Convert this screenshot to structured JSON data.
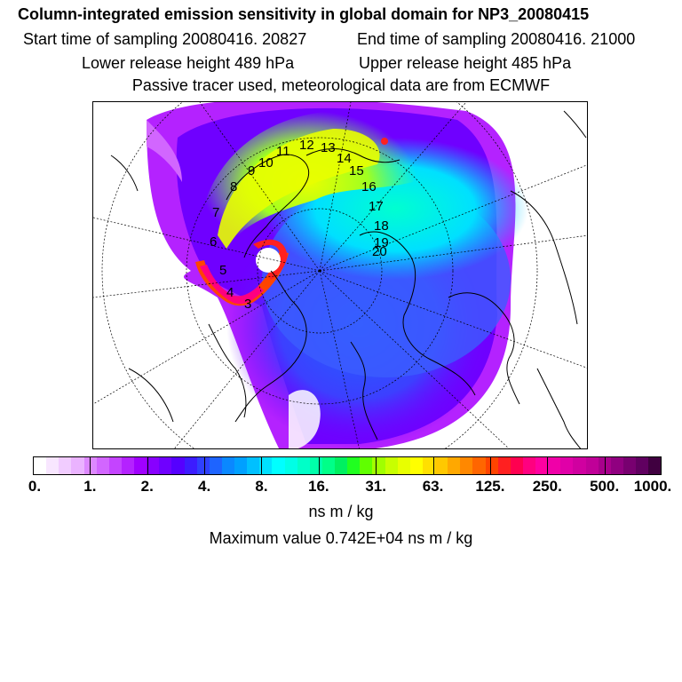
{
  "header": {
    "title": "Column-integrated emission sensitivity in global domain for NP3_20080415",
    "start_time": "Start time of sampling 20080416. 20827",
    "end_time": "End time of sampling 20080416. 21000",
    "lower_release": "Lower release height  489 hPa",
    "upper_release": "Upper release height  485 hPa",
    "tracer_info": "Passive tracer used, meteorological data are from ECMWF"
  },
  "map": {
    "trajectory_labels": [
      "3",
      "4",
      "5",
      "6",
      "7",
      "8",
      "9",
      "10",
      "11",
      "12",
      "13",
      "14",
      "15",
      "16",
      "17",
      "18",
      "19",
      "20"
    ]
  },
  "colorbar": {
    "colors": [
      "#ffffff",
      "#f8e6ff",
      "#f1ccff",
      "#eab3ff",
      "#dd88ff",
      "#d266ff",
      "#c444ff",
      "#b422ff",
      "#a000ff",
      "#8800ff",
      "#6f00ff",
      "#5500ff",
      "#3c1cff",
      "#2f40ff",
      "#1e64ff",
      "#0a88ff",
      "#00a0ff",
      "#00c0ff",
      "#00e0ff",
      "#00ffff",
      "#00ffe6",
      "#00ffc8",
      "#00ffaa",
      "#00ff88",
      "#00f060",
      "#20ff20",
      "#60ff00",
      "#a0ff00",
      "#c8ff00",
      "#e8ff00",
      "#ffff00",
      "#ffe000",
      "#ffc800",
      "#ffa800",
      "#ff8800",
      "#ff6600",
      "#ff4400",
      "#ff2020",
      "#ff0050",
      "#ff0080",
      "#ff00a0",
      "#f000a8",
      "#e000a8",
      "#d000a0",
      "#c00098",
      "#a8008c",
      "#900080",
      "#780070",
      "#600060",
      "#400040"
    ],
    "tick_labels": [
      "0.",
      "1.",
      "2.",
      "4.",
      "8.",
      "16.",
      "31.",
      "63.",
      "125.",
      "250.",
      "500.",
      "1000."
    ],
    "units": "ns m / kg",
    "max_value": "Maximum value  0.742E+04 ns m / kg"
  }
}
